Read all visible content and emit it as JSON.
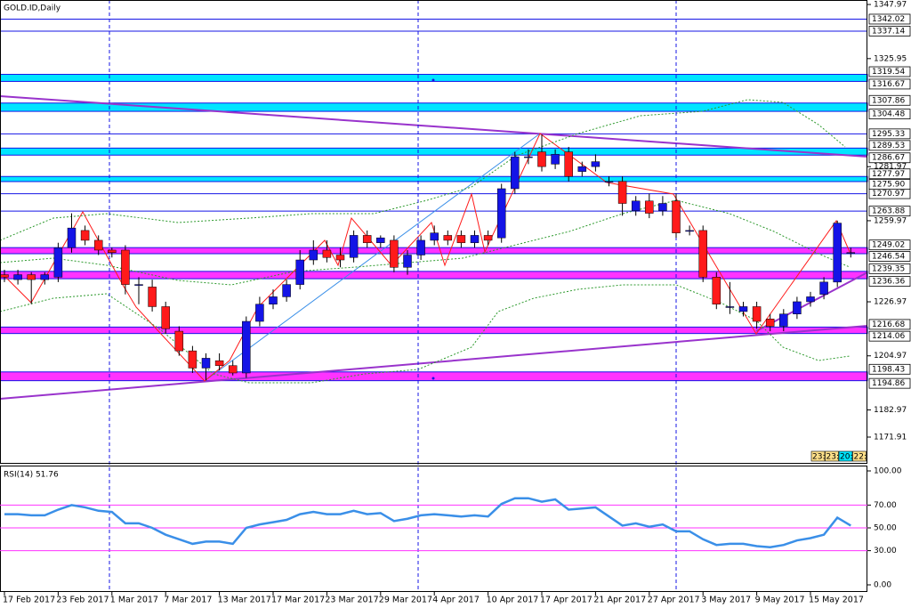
{
  "chart_data": {
    "type": "candlestick",
    "title": "GOLD.ID,Daily",
    "categories": [
      "17 Feb 2017",
      null,
      null,
      null,
      "23 Feb 2017",
      null,
      null,
      null,
      "1 Mar 2017",
      null,
      null,
      null,
      "7 Mar 2017",
      null,
      null,
      null,
      "13 Mar 2017",
      null,
      null,
      null,
      "17 Mar 2017",
      null,
      null,
      null,
      "23 Mar 2017",
      null,
      null,
      null,
      "29 Mar 2017",
      null,
      null,
      null,
      "4 Apr 2017",
      null,
      null,
      null,
      "10 Apr 2017",
      null,
      null,
      null,
      "17 Apr 2017",
      null,
      null,
      null,
      "21 Apr 2017",
      null,
      null,
      null,
      "27 Apr 2017",
      null,
      null,
      null,
      "3 May 2017",
      null,
      null,
      null,
      "9 May 2017",
      null,
      null,
      null,
      "15 May 2017",
      null,
      null,
      null
    ],
    "open": [
      1238,
      1236,
      1238,
      1236,
      1237,
      1249,
      1256,
      1252,
      1248,
      1248,
      1234,
      1233,
      1225,
      1215,
      1207,
      1200,
      1203,
      1201,
      1198,
      1219,
      1226,
      1229,
      1234,
      1244,
      1248,
      1246,
      1245,
      1254,
      1251,
      1252,
      1241,
      1246,
      1252,
      1254,
      1254,
      1251,
      1254,
      1253,
      1273,
      1286,
      1288,
      1283,
      1288,
      1280,
      1282,
      1276,
      1276,
      1264,
      1268,
      1264,
      1268,
      1256,
      1256,
      1237,
      1225,
      1223,
      1225,
      1220,
      1217,
      1222,
      1227,
      1230,
      1235,
      1247
    ],
    "high": [
      1240,
      1240,
      1239,
      1239,
      1251,
      1263,
      1258,
      1254,
      1249,
      1250,
      1237,
      1236,
      1227,
      1217,
      1209,
      1206,
      1206,
      1203,
      1221,
      1229,
      1232,
      1236,
      1248,
      1252,
      1252,
      1249,
      1256,
      1256,
      1254,
      1254,
      1248,
      1254,
      1258,
      1256,
      1256,
      1256,
      1256,
      1275,
      1288,
      1289,
      1295,
      1289,
      1290,
      1284,
      1287,
      1278,
      1278,
      1270,
      1271,
      1270,
      1271,
      1258,
      1258,
      1239,
      1235,
      1227,
      1227,
      1222,
      1224,
      1229,
      1231,
      1237,
      1260,
      1249
    ],
    "low": [
      1235,
      1234,
      1226,
      1234,
      1235,
      1247,
      1250,
      1246,
      1245,
      1230,
      1226,
      1223,
      1214,
      1205,
      1198,
      1195,
      1199,
      1197,
      1196,
      1217,
      1224,
      1227,
      1232,
      1242,
      1243,
      1241,
      1243,
      1249,
      1249,
      1239,
      1238,
      1244,
      1250,
      1250,
      1249,
      1249,
      1250,
      1251,
      1271,
      1283,
      1280,
      1281,
      1276,
      1278,
      1280,
      1274,
      1262,
      1262,
      1261,
      1262,
      1253,
      1254,
      1235,
      1224,
      1222,
      1221,
      1216,
      1215,
      1215,
      1220,
      1225,
      1228,
      1233,
      1245
    ],
    "close": [
      1237,
      1238,
      1236,
      1238,
      1249,
      1257,
      1252,
      1248,
      1247,
      1234,
      1234,
      1225,
      1216,
      1207,
      1200,
      1204,
      1201,
      1198,
      1219,
      1226,
      1229,
      1234,
      1244,
      1248,
      1245,
      1244,
      1254,
      1251,
      1253,
      1241,
      1246,
      1252,
      1255,
      1252,
      1251,
      1254,
      1252,
      1273,
      1286,
      1286,
      1282,
      1287,
      1278,
      1282,
      1284,
      1276,
      1267,
      1268,
      1263,
      1267,
      1255,
      1256,
      1237,
      1226,
      1225,
      1225,
      1219,
      1217,
      1222,
      1227,
      1229,
      1235,
      1259,
      1247
    ],
    "up_color": "#1414e6",
    "down_color": "#ff1a1a",
    "ylim": [
      1161.4,
      1349.8
    ],
    "yticks": [
      1347.97,
      1325.95,
      1281.97,
      1259.97,
      1226.97,
      1204.97,
      1182.97,
      1171.91
    ],
    "hlines": [
      1342.02,
      1337.14,
      1295.33,
      1270.97,
      1263.88
    ],
    "zones": [
      {
        "bounds": [
          1316.67,
          1319.54
        ],
        "color": "#00e5ff"
      },
      {
        "bounds": [
          1304.48,
          1307.86
        ],
        "color": "#00e5ff"
      },
      {
        "bounds": [
          1286.67,
          1289.53
        ],
        "color": "#00e5ff"
      },
      {
        "bounds": [
          {
            "value": 1275.9,
            "label": "1275.90"
          },
          1277.97
        ],
        "color": "#00e5ff"
      },
      {
        "bounds": [
          1246.54,
          1249.02
        ],
        "color": "#ff33ff"
      },
      {
        "bounds": [
          1236.36,
          1239.35
        ],
        "color": "#ff33ff"
      },
      {
        "bounds": [
          1214.06,
          1216.68
        ],
        "color": "#ff33ff"
      },
      {
        "bounds": [
          1194.86,
          1198.43
        ],
        "color": "#ff33ff"
      }
    ],
    "timer_labels": [
      "23:",
      "23:",
      "20:",
      "22:"
    ],
    "rsi": {
      "title": "RSI(14) 51.76",
      "color": "#3a8fe8",
      "values": [
        62,
        62,
        61,
        61,
        66,
        70,
        68,
        65,
        64,
        54,
        54,
        50,
        44,
        40,
        36,
        38,
        38,
        36,
        50,
        53,
        55,
        57,
        62,
        64,
        62,
        62,
        65,
        62,
        63,
        56,
        58,
        61,
        62,
        61,
        60,
        61,
        60,
        71,
        76,
        76,
        73,
        75,
        66,
        67,
        68,
        60,
        52,
        54,
        51,
        53,
        47,
        47,
        40,
        35,
        36,
        36,
        34,
        33,
        35,
        39,
        41,
        44,
        59,
        52
      ],
      "ylim": [
        -6.25,
        103.9
      ],
      "yticks": [
        {
          "value": 100,
          "label": "100.00"
        },
        {
          "value": 70,
          "label": "70.00"
        },
        {
          "value": 50,
          "label": "50.00"
        },
        {
          "value": 30,
          "label": "30.00"
        },
        {
          "value": 0,
          "label": "0.00"
        }
      ],
      "levels": [
        70,
        50,
        30
      ],
      "level_color": "#ff33ff"
    }
  }
}
